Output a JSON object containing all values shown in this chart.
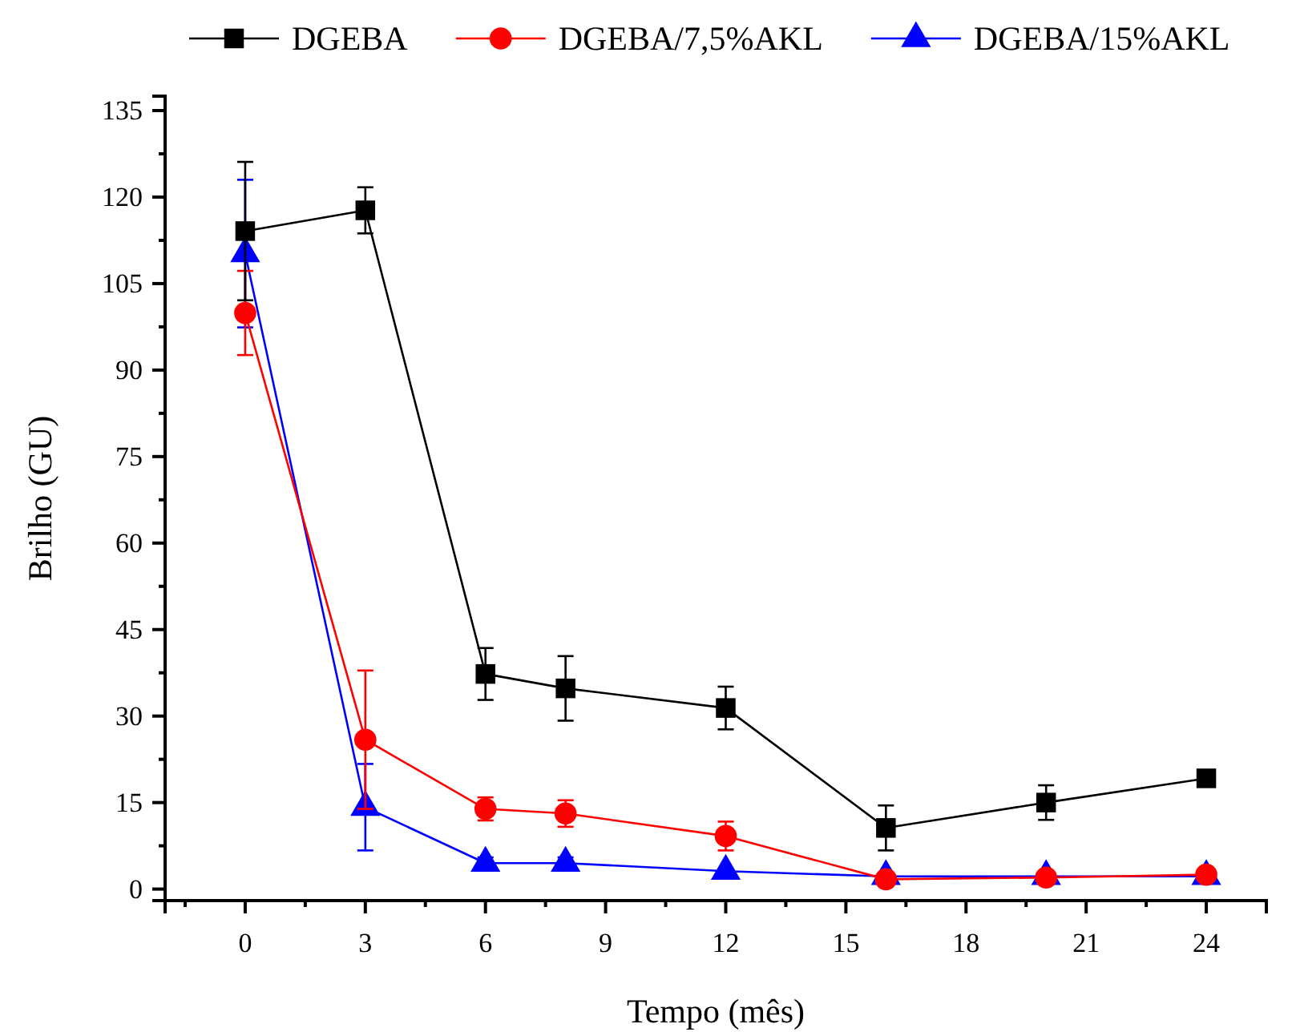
{
  "chart_data": {
    "type": "line",
    "xlabel": "Tempo (mês)",
    "ylabel": "Brilho (GU)",
    "x": [
      0,
      3,
      6,
      8,
      12,
      16,
      20,
      24
    ],
    "xlim": [
      -2,
      25.5
    ],
    "xticks": [
      0,
      3,
      6,
      9,
      12,
      15,
      18,
      21,
      24
    ],
    "ylim": [
      -2,
      137.5
    ],
    "yticks": [
      0,
      15,
      30,
      45,
      60,
      75,
      90,
      105,
      120,
      135
    ],
    "legend": "top",
    "grid": false,
    "line_style": "solid",
    "series": [
      {
        "name": "DGEBA",
        "color": "#000000",
        "marker": "square",
        "values": [
          114.1,
          117.7,
          37.3,
          34.8,
          31.4,
          10.6,
          15.0,
          19.2
        ],
        "errors": [
          12,
          4,
          4.5,
          5.6,
          3.7,
          3.9,
          3,
          1
        ]
      },
      {
        "name": "DGEBA/7,5%AKL",
        "color": "#ff0000",
        "marker": "circle",
        "values": [
          99.9,
          25.9,
          13.9,
          13.1,
          9.2,
          1.7,
          2.0,
          2.5
        ],
        "errors": [
          7.3,
          12,
          2,
          2.3,
          2.5,
          null,
          null,
          null
        ]
      },
      {
        "name": "DGEBA/15%AKL",
        "color": "#0000ff",
        "marker": "triangle",
        "values": [
          110.2,
          14.2,
          4.5,
          4.5,
          3.1,
          2.2,
          2.2,
          2.2
        ],
        "errors": [
          12.8,
          7.5,
          1,
          1,
          null,
          null,
          null,
          null
        ]
      }
    ]
  }
}
